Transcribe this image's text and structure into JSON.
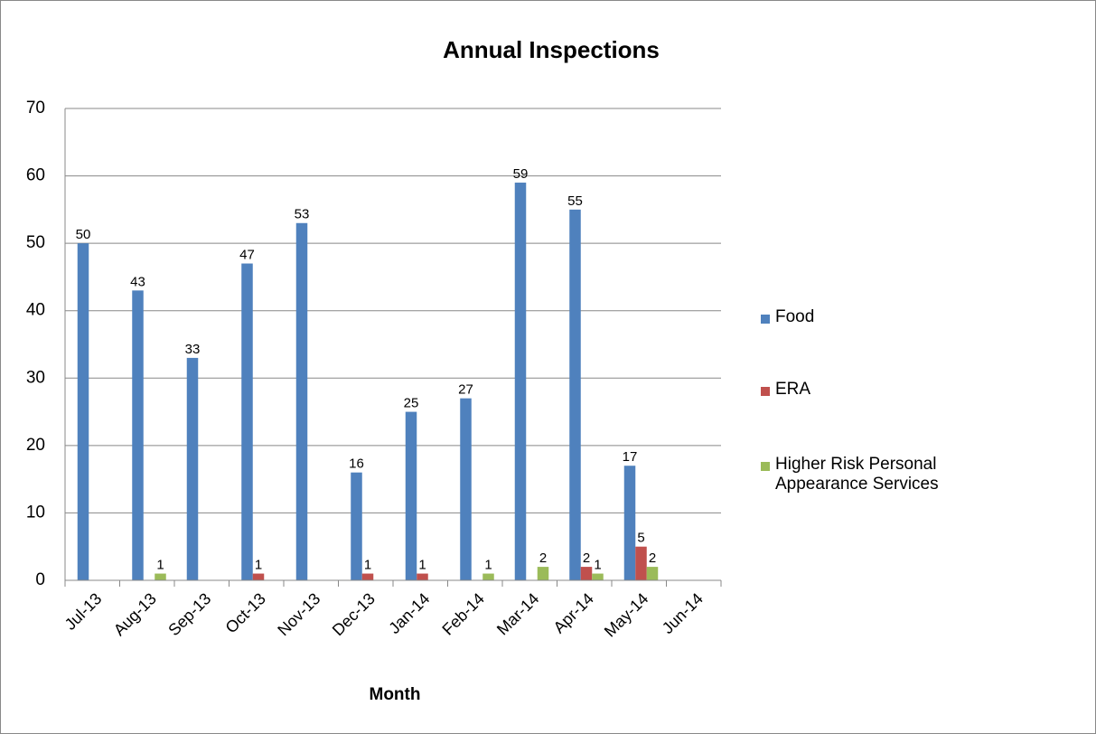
{
  "chart_data": {
    "type": "bar",
    "title": "Annual Inspections",
    "x_label": "Month",
    "categories": [
      "Jul-13",
      "Aug-13",
      "Sep-13",
      "Oct-13",
      "Nov-13",
      "Dec-13",
      "Jan-14",
      "Feb-14",
      "Mar-14",
      "Apr-14",
      "May-14",
      "Jun-14"
    ],
    "series": [
      {
        "name": "Food",
        "color": "#4f81bd",
        "values": [
          50,
          43,
          33,
          47,
          53,
          16,
          25,
          27,
          59,
          55,
          17,
          null
        ]
      },
      {
        "name": "ERA",
        "color": "#c0504d",
        "values": [
          null,
          null,
          null,
          1,
          null,
          1,
          1,
          null,
          null,
          2,
          5,
          null
        ]
      },
      {
        "name": "Higher Risk Personal Appearance Services",
        "color": "#9bbb59",
        "values": [
          null,
          1,
          null,
          null,
          null,
          null,
          null,
          1,
          2,
          1,
          2,
          null
        ]
      }
    ],
    "ylim": [
      0,
      70
    ],
    "yticks": [
      0,
      10,
      20,
      30,
      40,
      50,
      60,
      70
    ],
    "grid": true,
    "legend": "right"
  }
}
